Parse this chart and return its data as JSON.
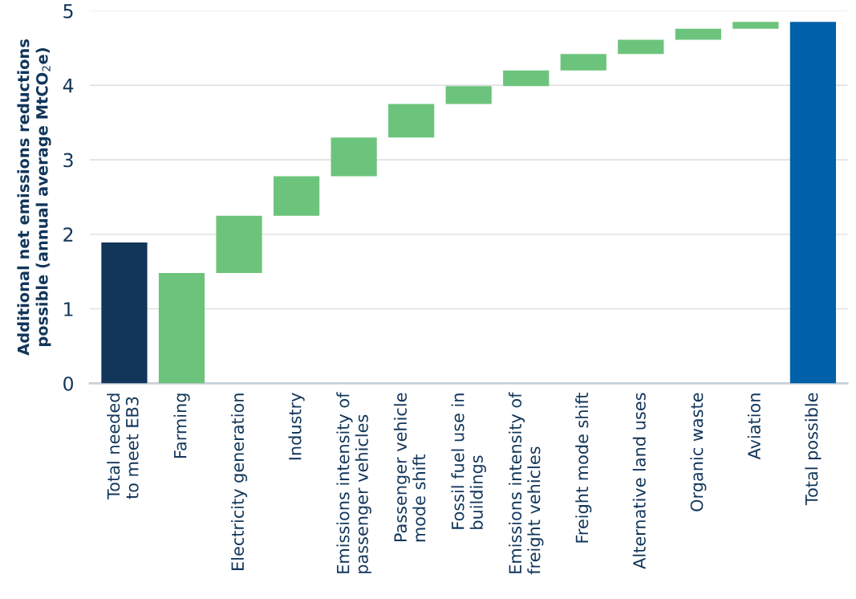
{
  "chart_data": {
    "type": "bar",
    "ylabel": "Additional net emissions reductions\npossible (annual average MtCO$_{2}$e)",
    "categories": [
      "Total needed\nto meet EB3",
      "Farming",
      "Electricity generation",
      "Industry",
      "Emissions intensity of\npassenger vehicles",
      "Passenger vehicle\nmode shift",
      "Fossil fuel use in\nbuildings",
      "Emissions intensity of\nfreight vehicles",
      "Freight mode shift",
      "Alternative land uses",
      "Organic waste",
      "Aviation",
      "Total possible"
    ],
    "values": [
      1.89,
      1.48,
      0.77,
      0.53,
      0.52,
      0.45,
      0.24,
      0.21,
      0.22,
      0.19,
      0.15,
      0.09,
      4.85
    ],
    "base": [
      0,
      0,
      1.48,
      2.25,
      2.78,
      3.3,
      3.75,
      3.99,
      4.2,
      4.42,
      4.61,
      4.76,
      0
    ],
    "colors": [
      "#12365a",
      "#6cc47c",
      "#6cc47c",
      "#6cc47c",
      "#6cc47c",
      "#6cc47c",
      "#6cc47c",
      "#6cc47c",
      "#6cc47c",
      "#6cc47c",
      "#6cc47c",
      "#6cc47c",
      "#0060a8"
    ],
    "ylim": [
      0,
      5
    ],
    "yticks": [
      0,
      1,
      2,
      3,
      4,
      5
    ],
    "grid": "y"
  }
}
